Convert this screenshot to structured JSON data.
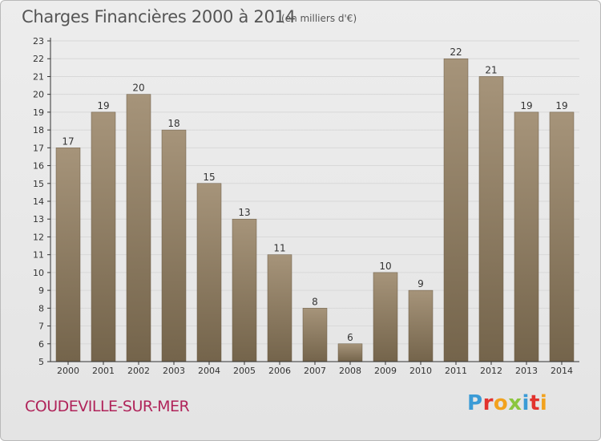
{
  "header": {
    "title": "Charges Financières 2000 à 2014",
    "subtitle": "(en milliers d'€)"
  },
  "footer": {
    "commune": "COUDEVILLE-SUR-MER",
    "logo_text": "Proxiti",
    "logo_colors": [
      "#3b9bd6",
      "#e2332e",
      "#f2a21e",
      "#8cc63f",
      "#3b9bd6",
      "#e2332e",
      "#f2a21e"
    ]
  },
  "colors": {
    "bar_light": "#a6947a",
    "bar_dark": "#74644b",
    "axis": "#333333",
    "grid": "#d8d8d8"
  },
  "chart_data": {
    "type": "bar",
    "title": "Charges Financières 2000 à 2014",
    "subtitle": "(en milliers d'€)",
    "categories": [
      "2000",
      "2001",
      "2002",
      "2003",
      "2004",
      "2005",
      "2006",
      "2007",
      "2008",
      "2009",
      "2010",
      "2011",
      "2012",
      "2013",
      "2014"
    ],
    "values": [
      17,
      19,
      20,
      18,
      15,
      13,
      11,
      8,
      6,
      10,
      9,
      22,
      21,
      19,
      19
    ],
    "ylim": [
      5,
      23
    ],
    "yticks": [
      5,
      6,
      7,
      8,
      9,
      10,
      11,
      12,
      13,
      14,
      15,
      16,
      17,
      18,
      19,
      20,
      21,
      22,
      23
    ],
    "xlabel": "",
    "ylabel": "",
    "grid": true
  }
}
